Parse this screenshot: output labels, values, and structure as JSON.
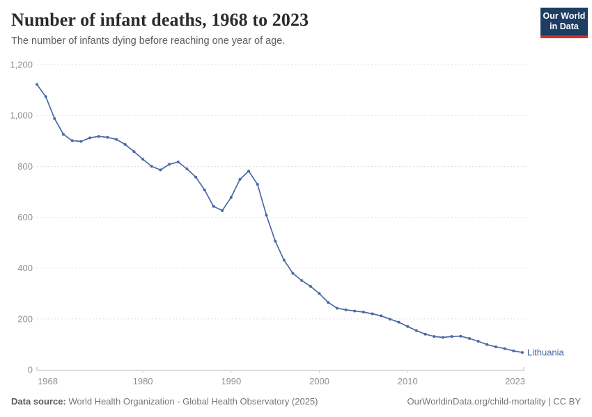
{
  "header": {
    "title": "Number of infant deaths, 1968 to 2023",
    "subtitle": "The number of infants dying before reaching one year of age.",
    "logo": {
      "line1": "Our World",
      "line2": "in Data"
    }
  },
  "chart_data": {
    "type": "line",
    "title": "Number of infant deaths, 1968 to 2023",
    "xlabel": "",
    "ylabel": "",
    "xlim": [
      1968,
      2023
    ],
    "ylim": [
      0,
      1200
    ],
    "grid": "horizontal-dashed",
    "legend_position": "end-of-line-label",
    "x": [
      1968,
      1969,
      1970,
      1971,
      1972,
      1973,
      1974,
      1975,
      1976,
      1977,
      1978,
      1979,
      1980,
      1981,
      1982,
      1983,
      1984,
      1985,
      1986,
      1987,
      1988,
      1989,
      1990,
      1991,
      1992,
      1993,
      1994,
      1995,
      1996,
      1997,
      1998,
      1999,
      2000,
      2001,
      2002,
      2003,
      2004,
      2005,
      2006,
      2007,
      2008,
      2009,
      2010,
      2011,
      2012,
      2013,
      2014,
      2015,
      2016,
      2017,
      2018,
      2019,
      2020,
      2021,
      2022,
      2023
    ],
    "series": [
      {
        "name": "Lithuania",
        "color": "#4a69a6",
        "values": [
          1122,
          1074,
          988,
          926,
          901,
          898,
          912,
          918,
          914,
          906,
          886,
          858,
          828,
          800,
          786,
          808,
          817,
          790,
          758,
          707,
          643,
          626,
          678,
          749,
          781,
          729,
          608,
          506,
          431,
          379,
          351,
          328,
          300,
          265,
          242,
          236,
          231,
          227,
          220,
          212,
          199,
          187,
          170,
          154,
          140,
          131,
          127,
          131,
          132,
          123,
          112,
          99,
          90,
          83,
          74,
          68
        ]
      }
    ],
    "yticks": [
      {
        "value": 0,
        "label": "0"
      },
      {
        "value": 200,
        "label": "200"
      },
      {
        "value": 400,
        "label": "400"
      },
      {
        "value": 600,
        "label": "600"
      },
      {
        "value": 800,
        "label": "800"
      },
      {
        "value": 1000,
        "label": "1,000"
      },
      {
        "value": 1200,
        "label": "1,200"
      }
    ],
    "xticks": [
      {
        "year": 1968,
        "label": "1968",
        "align": "start"
      },
      {
        "year": 1980,
        "label": "1980",
        "align": "middle"
      },
      {
        "year": 1990,
        "label": "1990",
        "align": "middle"
      },
      {
        "year": 2000,
        "label": "2000",
        "align": "middle"
      },
      {
        "year": 2010,
        "label": "2010",
        "align": "middle"
      },
      {
        "year": 2023,
        "label": "2023",
        "align": "end"
      }
    ]
  },
  "footer": {
    "source_label": "Data source:",
    "source_text": " World Health Organization - Global Health Observatory (2025)",
    "credit": "OurWorldinData.org/child-mortality | CC BY"
  },
  "colors": {
    "line": "#4a69a6",
    "logo_bg": "#1d3d63",
    "logo_red": "#d0342c",
    "grid": "#dcdcdc",
    "axis": "#b4b4b4",
    "tick_text": "#8f8f8f"
  }
}
